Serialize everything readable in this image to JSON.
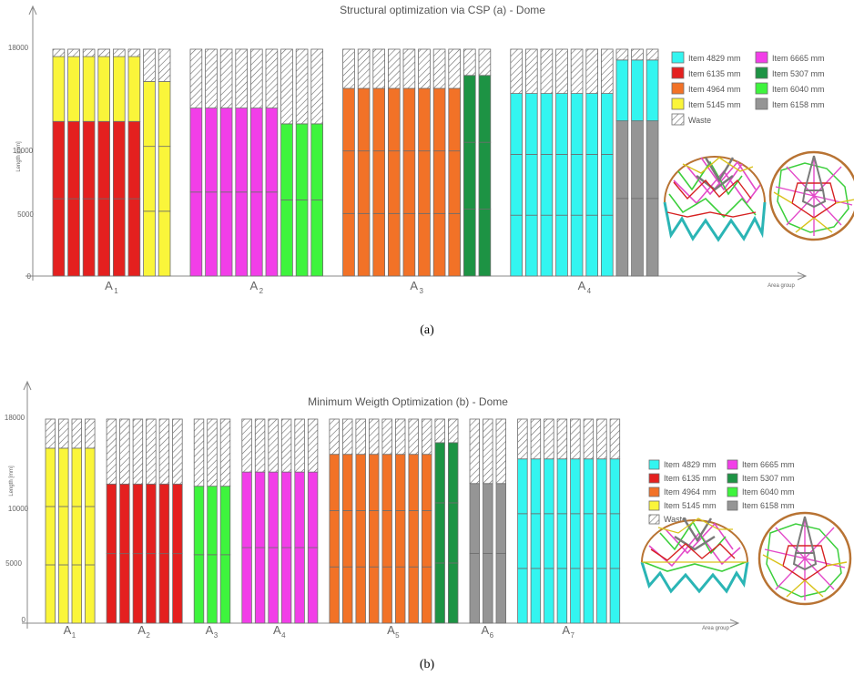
{
  "colors": {
    "Item 4829 mm": "#33f5f0",
    "Item 6135 mm": "#e4201f",
    "Item 4964 mm": "#f27227",
    "Item 5145 mm": "#faf53a",
    "Item 6665 mm": "#f23ee8",
    "Item 5307 mm": "#1d9344",
    "Item 6040 mm": "#3ef43d",
    "Item 6158 mm": "#959595",
    "Waste": "hatch"
  },
  "chart_data": [
    {
      "type": "bar",
      "stacked": true,
      "title": "Structural optimization via CSP (a) -  Dome",
      "caption": "(a)",
      "ylabel": "Length [mm]",
      "xlabel": "Area group",
      "ylim": [
        0,
        18000
      ],
      "y_ticks": [
        "0",
        "5000",
        "10000",
        "18000"
      ],
      "stock_length": 18000,
      "legend": [
        "Item 4829 mm",
        "Item 6665 mm",
        "Item 6135 mm",
        "Item 5307 mm",
        "Item 4964 mm",
        "Item 6040 mm",
        "Item 5145 mm",
        "Item 6158 mm",
        "Waste"
      ],
      "groups": [
        {
          "label": "A",
          "sub": "1",
          "bars": [
            {
              "count": 6,
              "pieces": [
                "Item 6135 mm",
                "Item 6135 mm",
                "Item 5145 mm"
              ]
            },
            {
              "count": 2,
              "pieces": [
                "Item 5145 mm",
                "Item 5145 mm",
                "Item 5145 mm"
              ]
            }
          ]
        },
        {
          "label": "A",
          "sub": "2",
          "bars": [
            {
              "count": 6,
              "pieces": [
                "Item 6665 mm",
                "Item 6665 mm"
              ]
            },
            {
              "count": 3,
              "pieces": [
                "Item 6040 mm",
                "Item 6040 mm"
              ]
            }
          ]
        },
        {
          "label": "A",
          "sub": "3",
          "bars": [
            {
              "count": 8,
              "pieces": [
                "Item 4964 mm",
                "Item 4964 mm",
                "Item 4964 mm"
              ]
            },
            {
              "count": 2,
              "pieces": [
                "Item 5307 mm",
                "Item 5307 mm",
                "Item 5307 mm"
              ]
            }
          ]
        },
        {
          "label": "A",
          "sub": "4",
          "bars": [
            {
              "count": 7,
              "pieces": [
                "Item 4829 mm",
                "Item 4829 mm",
                "Item 4829 mm"
              ]
            },
            {
              "count": 3,
              "pieces": [
                "Item 6158 mm",
                "Item 6158 mm",
                "Item 4829 mm"
              ]
            }
          ]
        }
      ]
    },
    {
      "type": "bar",
      "stacked": true,
      "title": "Minimum Weigth Optimization (b) -  Dome",
      "caption": "(b)",
      "ylabel": "Length [mm]",
      "xlabel": "Area group",
      "ylim": [
        0,
        18000
      ],
      "y_ticks": [
        "0",
        "5000",
        "10000",
        "18000"
      ],
      "stock_length": 18000,
      "legend": [
        "Item 4829 mm",
        "Item 6665 mm",
        "Item 6135 mm",
        "Item 5307 mm",
        "Item 4964 mm",
        "Item 6040 mm",
        "Item 5145 mm",
        "Item 6158 mm",
        "Waste"
      ],
      "groups": [
        {
          "label": "A",
          "sub": "1",
          "bars": [
            {
              "count": 4,
              "pieces": [
                "Item 5145 mm",
                "Item 5145 mm",
                "Item 5145 mm"
              ]
            }
          ]
        },
        {
          "label": "A",
          "sub": "2",
          "bars": [
            {
              "count": 6,
              "pieces": [
                "Item 6135 mm",
                "Item 6135 mm"
              ]
            }
          ]
        },
        {
          "label": "A",
          "sub": "3",
          "bars": [
            {
              "count": 3,
              "pieces": [
                "Item 6040 mm",
                "Item 6040 mm"
              ]
            }
          ]
        },
        {
          "label": "A",
          "sub": "4",
          "bars": [
            {
              "count": 6,
              "pieces": [
                "Item 6665 mm",
                "Item 6665 mm"
              ]
            }
          ]
        },
        {
          "label": "A",
          "sub": "5",
          "bars": [
            {
              "count": 8,
              "pieces": [
                "Item 4964 mm",
                "Item 4964 mm",
                "Item 4964 mm"
              ]
            },
            {
              "count": 2,
              "pieces": [
                "Item 5307 mm",
                "Item 5307 mm",
                "Item 5307 mm"
              ]
            }
          ]
        },
        {
          "label": "A",
          "sub": "6",
          "bars": [
            {
              "count": 3,
              "pieces": [
                "Item 6158 mm",
                "Item 6158 mm"
              ]
            }
          ]
        },
        {
          "label": "A",
          "sub": "7",
          "bars": [
            {
              "count": 8,
              "pieces": [
                "Item 4829 mm",
                "Item 4829 mm",
                "Item 4829 mm"
              ]
            }
          ]
        }
      ]
    }
  ]
}
